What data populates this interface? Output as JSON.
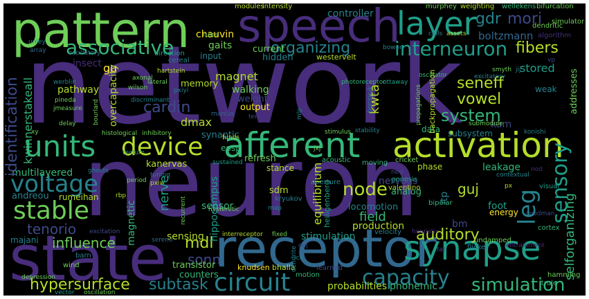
{
  "palette": {
    "background": "#000000",
    "frame": "#ffffff",
    "dark_purple": "#472d7b",
    "purple": "#3e4989",
    "blue": "#31688e",
    "teal": "#26828e",
    "sea_green": "#1f9e89",
    "green": "#35b779",
    "light_green": "#6ece58",
    "lime": "#b5de2b",
    "yellow": "#fde725"
  },
  "words": {
    "network": "network",
    "neuron": "neuron",
    "pattern": "pattern",
    "speech": "speech",
    "state": "state",
    "receptor": "receptor",
    "synapse": "synapse",
    "layer": "layer",
    "gdr": "gdr",
    "mori": "mori",
    "associative": "associative",
    "organizing": "organizing",
    "interneuron": "interneuron",
    "boltzmann": "boltzmann",
    "fibers": "fibers",
    "stored": "stored",
    "units": "units",
    "device": "device",
    "afferent": "afferent",
    "activation": "activation",
    "voltage": "voltage",
    "stable": "stable",
    "tenorio": "tenorio",
    "circuit": "circuit",
    "capacity": "capacity",
    "simulation": "simulation",
    "hypersurface": "hypersurface",
    "subtask": "subtask",
    "sensory": "sensory",
    "leg": "leg",
    "selforganizing": "selforganizing",
    "auditory": "auditory",
    "mdl": "mdl",
    "system": "system",
    "vowel": "vowel",
    "seneff": "seneff",
    "kwta": "kwta",
    "cardin": "cardin",
    "magnet": "magnet",
    "influence": "influence",
    "identification": "identification",
    "multilayered": "multilayered",
    "andreou": "andreou",
    "node": "node",
    "sonn": "sonn",
    "nerve": "nerve",
    "sensing": "sensing",
    "guj": "guj",
    "bm": "bm",
    "ltp": "ltp",
    "chauvin": "chauvin",
    "gaits": "gaits",
    "input": "input",
    "current": "current",
    "hidden": "hidden",
    "controller": "controller",
    "westervelt": "westervelt",
    "wellekens": "wellekens",
    "murphey": "murphey",
    "weighting": "weighting",
    "bifurcation": "bifurcation",
    "modules": "modules",
    "intensity": "intensity",
    "rules": "rules",
    "dendritic": "dendritic",
    "algorithm": "algorithm",
    "simulator": "simulator",
    "assets": "assets",
    "cells": "cells",
    "oscillator": "oscillator",
    "bower": "bower",
    "oscillatory": "oscillatory",
    "direction": "direction",
    "cereal": "cereal",
    "unley": "unley",
    "array": "array",
    "kwinnerstakeall": "kwinnerstakeall",
    "insect": "insect",
    "gu": "gu",
    "overcapacity": "overcapacity",
    "pathway": "pathway",
    "memory": "memory",
    "walking": "walking",
    "weight": "weight",
    "output": "output",
    "dmax": "dmax",
    "synaptic": "synaptic",
    "epsp": "epsp",
    "refresh": "refresh",
    "stance": "stance",
    "kanervas": "kanervas",
    "rumeihan": "rumeihan",
    "equilibrium": "equilibrium",
    "field": "field",
    "sdm": "sdm",
    "locomotion": "locomotion",
    "production": "production",
    "stimulation": "stimulation",
    "nervous": "nervous",
    "analog": "analog",
    "leakage": "leakage",
    "phase": "phase",
    "foot": "foot",
    "energy": "energy",
    "kam": "kam",
    "subsystem": "subsystem",
    "data": "data",
    "weak": "weak",
    "addresses": "addresses",
    "majani": "majani",
    "magnetic": "magnetic",
    "sensor": "sensor",
    "transistor": "transistor",
    "counters": "counters",
    "hippocampus": "hippocampus",
    "interreceptor": "interreceptor",
    "knudsen": "knudsen",
    "bhalla": "bhalla",
    "learned": "learned",
    "probabilities": "probabilities",
    "phonemic": "phonemic",
    "hamming": "hamming",
    "itrule": "itrule",
    "depression": "depression",
    "vector": "vector",
    "oscillation": "oscillation",
    "wind": "wind",
    "barn": "barn",
    "acoustic": "acoustic",
    "cricket": "cricket",
    "moving": "moving",
    "aperture": "aperture",
    "genesis": "genesis",
    "valentino": "valentino",
    "kryukov": "kryukov",
    "bipolar": "bipolar",
    "velocity": "velocity",
    "undamped": "undamped",
    "flicker": "flicker",
    "cortex": "cortex",
    "visual": "visual",
    "heiligenberg": "heiligenberg",
    "werblin": "werblin",
    "pineda": "pineda",
    "jmeasure": "jmeasure",
    "delay": "delay",
    "bourlard": "bourlard",
    "wilson": "wilson",
    "axonal": "axonal",
    "lateral": "lateral",
    "pxiyi": "pxiyi",
    "discriminant": "discriminant",
    "hartstein": "hartstein",
    "histological": "histological",
    "inhibitory": "inhibitory",
    "funds": "funds",
    "stimulus": "stimulus",
    "stability": "stability",
    "pxiw": "pxiw",
    "tuning": "tuning",
    "tectum": "tectum",
    "sustained": "sustained",
    "ghosts": "ghosts",
    "period": "period",
    "rbp": "rbp",
    "recurrent": "recurrent",
    "hysteretic": "hysteretic",
    "map": "map",
    "sereno": "sereno",
    "excitation": "excitation",
    "fixed": "fixed",
    "ooj": "ooj",
    "icx": "icx",
    "dendrite": "dendrite",
    "motion": "motion",
    "photoreceptor": "photoreceptor",
    "ottaway": "ottaway",
    "borisyuk": "borisyuk",
    "propagations": "propagations",
    "backpropagation": "backpropagation",
    "excitatory": "excitatory",
    "smyth": "smyth",
    "submodule": "submodule",
    "konishi": "konishi",
    "contextual": "contextual",
    "mlp": "mlp",
    "ten": "ten",
    "jxj": "jxj",
    "marcus": "marcus",
    "xy": "xy",
    "jij": "jij",
    "vp": "vp",
    "px": "px",
    "goodman": "goodman",
    "tat": "tat",
    "nod": "nod",
    "new": "new",
    "entrainment": "entrainment",
    "heuristic": "heuristic"
  }
}
